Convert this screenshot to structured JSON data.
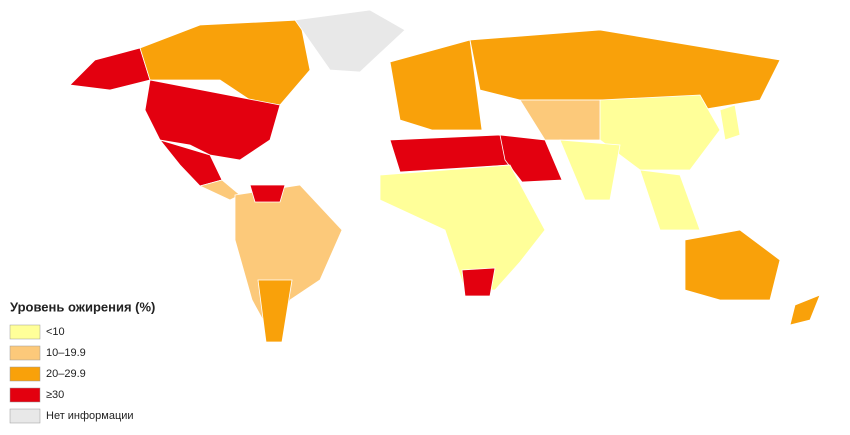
{
  "legend": {
    "title": "Уровень ожирения (%)",
    "items": [
      {
        "label": "<10",
        "color": "#ffff99"
      },
      {
        "label": "10–19.9",
        "color": "#fcc97a"
      },
      {
        "label": "20–29.9",
        "color": "#f9a10a"
      },
      {
        "label": "≥30",
        "color": "#e3000f"
      },
      {
        "label": "Нет информации",
        "color": "#e8e8e8"
      }
    ]
  }
}
